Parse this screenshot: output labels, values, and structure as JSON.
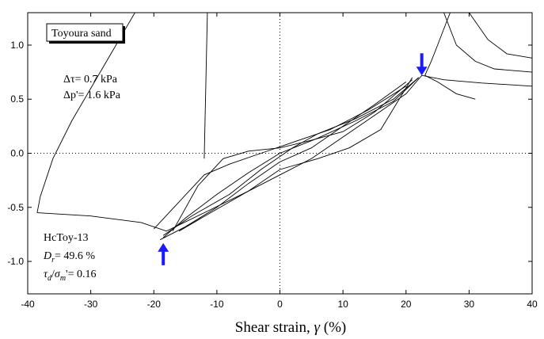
{
  "chart_data": {
    "type": "line",
    "title": "",
    "xlabel": "Shear strain, ",
    "xlabel_symbol": "γ",
    "xlabel_unit": " (%)",
    "ylabel": "",
    "xlim": [
      -40,
      40
    ],
    "ylim": [
      -1.3,
      1.3
    ],
    "x_ticks": [
      -40,
      -30,
      -20,
      -10,
      0,
      10,
      20,
      30,
      40
    ],
    "y_ticks": [
      -1.0,
      -0.5,
      0.0,
      0.5,
      1.0
    ],
    "y_tick_labels": [
      "-1.0",
      "-0.5",
      "0.0",
      "0.5",
      "1.0"
    ],
    "reference_lines": {
      "x": 0,
      "y": 0,
      "style": "dotted"
    },
    "grid": false,
    "series_color": "#000000",
    "arrow_color": "#1a1aff",
    "legend_box": {
      "text": "Toyoura sand",
      "placement": "top-left"
    },
    "annotations": {
      "delta_tau": "Δτ= 0.7 kPa",
      "delta_p": "Δp'= 1.6 kPa",
      "test_id": "HcToy-13",
      "dr_symbol": "D",
      "dr_sub": "r",
      "dr_value": "= 49.6 %",
      "ratio_tau": "τ",
      "ratio_tau_sub": "d",
      "ratio_slash": "/",
      "ratio_sigma": "σ",
      "ratio_sigma_sub": "m",
      "ratio_value": "'= 0.16"
    },
    "blue_arrows": [
      {
        "x": 22.5,
        "y": 0.72,
        "direction": "down"
      },
      {
        "x": -18.5,
        "y": -0.83,
        "direction": "up"
      }
    ],
    "series": [
      {
        "points": [
          [
            -38.5,
            -0.55
          ],
          [
            -30,
            -0.58
          ],
          [
            -22,
            -0.64
          ],
          [
            -18,
            -0.72
          ],
          [
            -12,
            -0.55
          ],
          [
            -5,
            -0.35
          ],
          [
            0,
            -0.2
          ],
          [
            5,
            -0.05
          ],
          [
            10,
            0.15
          ],
          [
            15,
            0.35
          ],
          [
            20,
            0.55
          ],
          [
            22.5,
            0.72
          ],
          [
            26,
            0.68
          ],
          [
            32,
            0.65
          ],
          [
            40,
            0.62
          ]
        ]
      },
      {
        "points": [
          [
            -18.5,
            -0.76
          ],
          [
            -14,
            -0.58
          ],
          [
            -8,
            -0.38
          ],
          [
            -3,
            -0.15
          ],
          [
            2,
            0.05
          ],
          [
            6,
            0.18
          ],
          [
            12,
            0.32
          ],
          [
            18,
            0.5
          ],
          [
            22,
            0.7
          ]
        ]
      },
      {
        "points": [
          [
            22,
            0.7
          ],
          [
            18,
            0.48
          ],
          [
            12,
            0.3
          ],
          [
            6,
            0.14
          ],
          [
            0,
            0.0
          ],
          [
            -5,
            -0.18
          ],
          [
            -10,
            -0.38
          ],
          [
            -15,
            -0.6
          ],
          [
            -18.5,
            -0.78
          ]
        ]
      },
      {
        "points": [
          [
            -20,
            -0.7
          ],
          [
            -16,
            -0.45
          ],
          [
            -12,
            -0.2
          ],
          [
            -8,
            -0.1
          ],
          [
            -3,
            0.0
          ],
          [
            2,
            0.1
          ],
          [
            8,
            0.22
          ],
          [
            14,
            0.4
          ],
          [
            20,
            0.62
          ]
        ]
      },
      {
        "points": [
          [
            20,
            0.66
          ],
          [
            15,
            0.45
          ],
          [
            10,
            0.25
          ],
          [
            5,
            0.05
          ],
          [
            0,
            -0.08
          ],
          [
            -5,
            -0.28
          ],
          [
            -10,
            -0.5
          ],
          [
            -15,
            -0.68
          ],
          [
            -19,
            -0.8
          ]
        ]
      },
      {
        "points": [
          [
            -17,
            -0.72
          ],
          [
            -13,
            -0.3
          ],
          [
            -9,
            -0.05
          ],
          [
            -5,
            0.02
          ],
          [
            0,
            0.05
          ],
          [
            5,
            0.12
          ],
          [
            10,
            0.2
          ],
          [
            15,
            0.38
          ],
          [
            21,
            0.68
          ]
        ]
      },
      {
        "points": [
          [
            21,
            0.7
          ],
          [
            16,
            0.22
          ],
          [
            11,
            0.05
          ],
          [
            6,
            -0.05
          ],
          [
            0,
            -0.15
          ],
          [
            -5,
            -0.35
          ],
          [
            -11,
            -0.55
          ],
          [
            -16,
            -0.72
          ]
        ]
      },
      {
        "points": [
          [
            -38.5,
            -0.55
          ],
          [
            -38,
            -0.4
          ],
          [
            -36,
            -0.05
          ],
          [
            -33,
            0.3
          ],
          [
            -30,
            0.6
          ],
          [
            -27,
            0.9
          ],
          [
            -24,
            1.2
          ],
          [
            -23,
            1.3
          ]
        ]
      },
      {
        "points": [
          [
            -12,
            -0.05
          ],
          [
            -11.5,
            1.3
          ]
        ]
      },
      {
        "points": [
          [
            23,
            0.72
          ],
          [
            24,
            0.85
          ],
          [
            25,
            1.0
          ],
          [
            26,
            1.15
          ],
          [
            27,
            1.3
          ]
        ]
      },
      {
        "points": [
          [
            26,
            1.3
          ],
          [
            28,
            1.0
          ],
          [
            31,
            0.85
          ],
          [
            34,
            0.78
          ],
          [
            40,
            0.75
          ]
        ]
      },
      {
        "points": [
          [
            30,
            1.3
          ],
          [
            33,
            1.05
          ],
          [
            36,
            0.92
          ],
          [
            40,
            0.88
          ]
        ]
      },
      {
        "points": [
          [
            23,
            0.72
          ],
          [
            25,
            0.66
          ],
          [
            28,
            0.55
          ],
          [
            31,
            0.5
          ]
        ]
      }
    ]
  }
}
